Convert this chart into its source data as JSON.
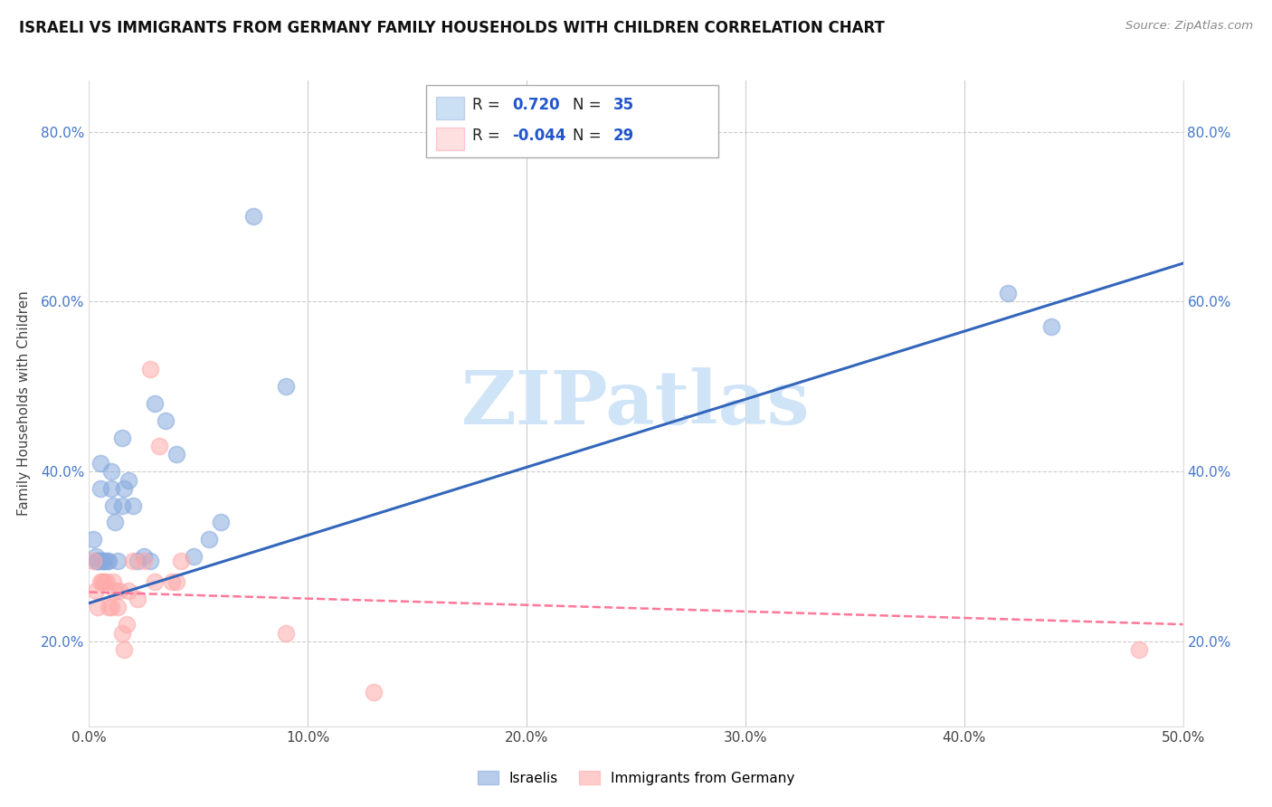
{
  "title": "ISRAELI VS IMMIGRANTS FROM GERMANY FAMILY HOUSEHOLDS WITH CHILDREN CORRELATION CHART",
  "source": "Source: ZipAtlas.com",
  "ylabel": "Family Households with Children",
  "xmin": 0.0,
  "xmax": 0.5,
  "ymin": 0.1,
  "ymax": 0.86,
  "x_ticks": [
    0.0,
    0.1,
    0.2,
    0.3,
    0.4,
    0.5
  ],
  "x_tick_labels": [
    "0.0%",
    "10.0%",
    "20.0%",
    "30.0%",
    "40.0%",
    "50.0%"
  ],
  "y_ticks": [
    0.2,
    0.4,
    0.6,
    0.8
  ],
  "y_tick_labels": [
    "20.0%",
    "40.0%",
    "60.0%",
    "80.0%"
  ],
  "grid_color": "#cccccc",
  "blue_color": "#88aadd",
  "pink_color": "#ffaaaa",
  "blue_line_color": "#3366bb",
  "pink_line_color": "#ff7799",
  "watermark_text": "ZIPatlas",
  "watermark_color": "#d0e4f7",
  "legend_R_blue": "0.720",
  "legend_N_blue": "35",
  "legend_R_pink": "-0.044",
  "legend_N_pink": "29",
  "israelis_x": [
    0.002,
    0.003,
    0.003,
    0.004,
    0.004,
    0.005,
    0.005,
    0.006,
    0.006,
    0.007,
    0.008,
    0.009,
    0.01,
    0.01,
    0.011,
    0.012,
    0.013,
    0.015,
    0.015,
    0.016,
    0.018,
    0.02,
    0.022,
    0.025,
    0.028,
    0.03,
    0.035,
    0.04,
    0.048,
    0.055,
    0.06,
    0.075,
    0.09,
    0.42,
    0.44
  ],
  "israelis_y": [
    0.32,
    0.295,
    0.3,
    0.295,
    0.295,
    0.38,
    0.41,
    0.295,
    0.295,
    0.295,
    0.295,
    0.295,
    0.4,
    0.38,
    0.36,
    0.34,
    0.295,
    0.44,
    0.36,
    0.38,
    0.39,
    0.36,
    0.295,
    0.3,
    0.295,
    0.48,
    0.46,
    0.42,
    0.3,
    0.32,
    0.34,
    0.7,
    0.5,
    0.61,
    0.57
  ],
  "germany_x": [
    0.002,
    0.003,
    0.004,
    0.005,
    0.006,
    0.007,
    0.008,
    0.009,
    0.01,
    0.011,
    0.012,
    0.013,
    0.014,
    0.015,
    0.016,
    0.017,
    0.018,
    0.02,
    0.022,
    0.025,
    0.028,
    0.03,
    0.032,
    0.038,
    0.04,
    0.042,
    0.09,
    0.13,
    0.48
  ],
  "germany_y": [
    0.295,
    0.26,
    0.24,
    0.27,
    0.27,
    0.27,
    0.27,
    0.24,
    0.24,
    0.27,
    0.26,
    0.24,
    0.26,
    0.21,
    0.19,
    0.22,
    0.26,
    0.295,
    0.25,
    0.295,
    0.52,
    0.27,
    0.43,
    0.27,
    0.27,
    0.295,
    0.21,
    0.14,
    0.19
  ],
  "blue_trendline_y0": 0.245,
  "blue_trendline_y1": 0.645,
  "pink_trendline_y0": 0.258,
  "pink_trendline_y1": 0.22
}
